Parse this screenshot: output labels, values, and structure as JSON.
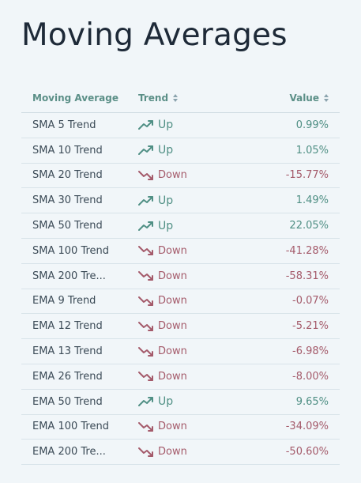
{
  "page": {
    "title": "Moving Averages"
  },
  "table": {
    "headers": {
      "moving_average": "Moving Average",
      "trend": "Trend",
      "value": "Value"
    },
    "rows": [
      {
        "name": "SMA 5 Trend",
        "trend": "Up",
        "direction": "up",
        "value": "0.99%"
      },
      {
        "name": "SMA 10 Trend",
        "trend": "Up",
        "direction": "up",
        "value": "1.05%"
      },
      {
        "name": "SMA 20 Trend",
        "trend": "Down",
        "direction": "down",
        "value": "-15.77%"
      },
      {
        "name": "SMA 30 Trend",
        "trend": "Up",
        "direction": "up",
        "value": "1.49%"
      },
      {
        "name": "SMA 50 Trend",
        "trend": "Up",
        "direction": "up",
        "value": "22.05%"
      },
      {
        "name": "SMA 100 Trend",
        "trend": "Down",
        "direction": "down",
        "value": "-41.28%"
      },
      {
        "name": "SMA 200 Tre...",
        "trend": "Down",
        "direction": "down",
        "value": "-58.31%"
      },
      {
        "name": "EMA 9 Trend",
        "trend": "Down",
        "direction": "down",
        "value": "-0.07%"
      },
      {
        "name": "EMA 12 Trend",
        "trend": "Down",
        "direction": "down",
        "value": "-5.21%"
      },
      {
        "name": "EMA 13 Trend",
        "trend": "Down",
        "direction": "down",
        "value": "-6.98%"
      },
      {
        "name": "EMA 26 Trend",
        "trend": "Down",
        "direction": "down",
        "value": "-8.00%"
      },
      {
        "name": "EMA 50 Trend",
        "trend": "Up",
        "direction": "up",
        "value": "9.65%"
      },
      {
        "name": "EMA 100 Trend",
        "trend": "Down",
        "direction": "down",
        "value": "-34.09%"
      },
      {
        "name": "EMA 200 Tre...",
        "trend": "Down",
        "direction": "down",
        "value": "-50.60%"
      }
    ]
  },
  "icons": {
    "sort": "sort-icon",
    "trend_up": "trending-up-icon",
    "trend_down": "trending-down-icon"
  },
  "colors": {
    "up": "#4f8f84",
    "down": "#a45a6a",
    "header": "#5b8f87",
    "background": "#f1f6f9"
  }
}
